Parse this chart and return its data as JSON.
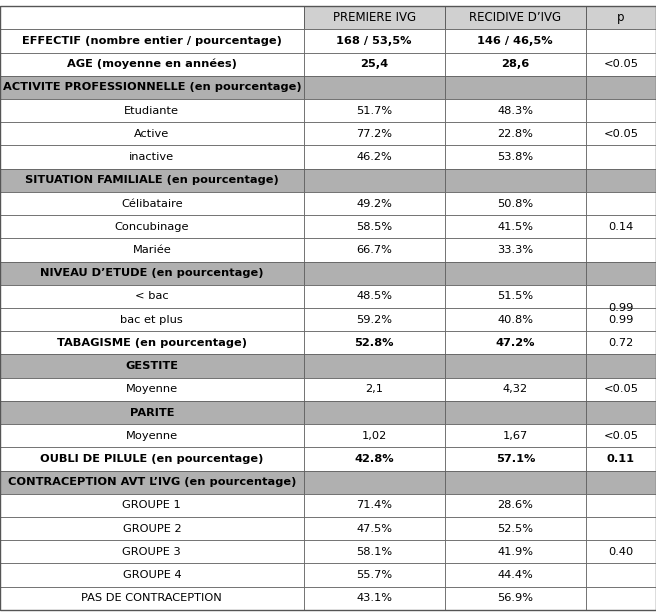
{
  "col_headers": [
    "",
    "PREMIERE IVG",
    "RECIDIVE D’IVG",
    "p"
  ],
  "rows": [
    {
      "label": "EFFECTIF (nombre entier / pourcentage)",
      "c1": "168 / 53,5%",
      "c2": "146 / 46,5%",
      "p": "",
      "style": "bold_label",
      "bg": "white"
    },
    {
      "label": "AGE (moyenne en années)",
      "c1": "25,4",
      "c2": "28,6",
      "p": "<0.05",
      "style": "bold_label",
      "bg": "white"
    },
    {
      "label": "ACTIVITE PROFESSIONNELLE (en pourcentage)",
      "c1": "",
      "c2": "",
      "p": "",
      "style": "section_header",
      "bg": "#b0b0b0"
    },
    {
      "label": "Etudiante",
      "c1": "51.7%",
      "c2": "48.3%",
      "p": "",
      "style": "subrow",
      "bg": "white"
    },
    {
      "label": "Active",
      "c1": "77.2%",
      "c2": "22.8%",
      "p": "<0.05",
      "style": "subrow_pmid",
      "bg": "white"
    },
    {
      "label": "inactive",
      "c1": "46.2%",
      "c2": "53.8%",
      "p": "",
      "style": "subrow",
      "bg": "white"
    },
    {
      "label": "SITUATION FAMILIALE (en pourcentage)",
      "c1": "",
      "c2": "",
      "p": "",
      "style": "section_header",
      "bg": "#b0b0b0"
    },
    {
      "label": "Célibataire",
      "c1": "49.2%",
      "c2": "50.8%",
      "p": "",
      "style": "subrow",
      "bg": "white"
    },
    {
      "label": "Concubinage",
      "c1": "58.5%",
      "c2": "41.5%",
      "p": "0.14",
      "style": "subrow_pmid",
      "bg": "white"
    },
    {
      "label": "Mariée",
      "c1": "66.7%",
      "c2": "33.3%",
      "p": "",
      "style": "subrow",
      "bg": "white"
    },
    {
      "label": "NIVEAU D’ETUDE (en pourcentage)",
      "c1": "",
      "c2": "",
      "p": "",
      "style": "section_header",
      "bg": "#b0b0b0"
    },
    {
      "label": "< bac",
      "c1": "48.5%",
      "c2": "51.5%",
      "p": "",
      "style": "subrow",
      "bg": "white"
    },
    {
      "label": "bac et plus",
      "c1": "59.2%",
      "c2": "40.8%",
      "p": "0.99",
      "style": "subrow",
      "bg": "white"
    },
    {
      "label": "TABAGISME (en pourcentage)",
      "c1": "52.8%",
      "c2": "47.2%",
      "p": "0.72",
      "style": "bold_label",
      "bg": "white"
    },
    {
      "label": "GESTITE",
      "c1": "",
      "c2": "",
      "p": "",
      "style": "section_header",
      "bg": "#b0b0b0"
    },
    {
      "label": "Moyenne",
      "c1": "2,1",
      "c2": "4,32",
      "p": "<0.05",
      "style": "subrow",
      "bg": "white"
    },
    {
      "label": "PARITE",
      "c1": "",
      "c2": "",
      "p": "",
      "style": "section_header",
      "bg": "#b0b0b0"
    },
    {
      "label": "Moyenne",
      "c1": "1,02",
      "c2": "1,67",
      "p": "<0.05",
      "style": "subrow",
      "bg": "white"
    },
    {
      "label": "OUBLI DE PILULE (en pourcentage)",
      "c1": "42.8%",
      "c2": "57.1%",
      "p": "0.11",
      "style": "bold_all",
      "bg": "white"
    },
    {
      "label": "CONTRACEPTION AVT L’IVG (en pourcentage)",
      "c1": "",
      "c2": "",
      "p": "",
      "style": "section_header",
      "bg": "#b0b0b0"
    },
    {
      "label": "GROUPE 1",
      "c1": "71.4%",
      "c2": "28.6%",
      "p": "",
      "style": "subrow",
      "bg": "white"
    },
    {
      "label": "GROUPE 2",
      "c1": "47.5%",
      "c2": "52.5%",
      "p": "",
      "style": "subrow",
      "bg": "white"
    },
    {
      "label": "GROUPE 3",
      "c1": "58.1%",
      "c2": "41.9%",
      "p": "0.40",
      "style": "subrow_pmid",
      "bg": "white"
    },
    {
      "label": "GROUPE 4",
      "c1": "55.7%",
      "c2": "44.4%",
      "p": "",
      "style": "subrow",
      "bg": "white"
    },
    {
      "label": "PAS DE CONTRACEPTION",
      "c1": "43.1%",
      "c2": "56.9%",
      "p": "",
      "style": "subrow",
      "bg": "white"
    }
  ],
  "p_groups": [
    {
      "p_value": "<0.05",
      "row_indices": [
        3,
        4,
        5
      ]
    },
    {
      "p_value": "0.14",
      "row_indices": [
        7,
        8,
        9
      ]
    },
    {
      "p_value": "0.99",
      "row_indices": [
        11,
        12
      ]
    },
    {
      "p_value": "0.40",
      "row_indices": [
        20,
        21,
        22,
        23,
        24
      ]
    }
  ],
  "header_bg": "#d0d0d0",
  "section_bg": "#b0b0b0",
  "border_color": "#555555",
  "font_size": 8.2,
  "header_font_size": 8.5
}
